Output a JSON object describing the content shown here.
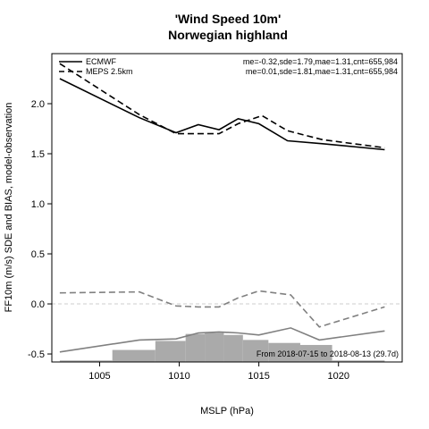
{
  "chart_data": {
    "type": "line",
    "title": "'Wind Speed 10m'",
    "subtitle": "Norwegian highland",
    "xlabel": "MSLP (hPa)",
    "ylabel": "FF10m (m/s) SDE and BIAS, model-observation",
    "xlim": [
      1002,
      1024
    ],
    "ylim": [
      -0.58,
      2.5
    ],
    "x_ticks": [
      1005,
      1010,
      1015,
      1020
    ],
    "y_ticks": [
      -0.5,
      0.0,
      0.5,
      1.0,
      1.5,
      2.0
    ],
    "y_tick_labels": [
      "-0.5",
      "0.0",
      "0.5",
      "1.0",
      "1.5",
      "2.0"
    ],
    "x_tick_labels": [
      "1005",
      "1010",
      "1015",
      "1020"
    ],
    "zero_line": true,
    "legend": {
      "position": "top-left",
      "entries": [
        {
          "label": "ECMWF",
          "style": "solid"
        },
        {
          "label": "MEPS 2.5km",
          "style": "dashed"
        }
      ]
    },
    "stats": [
      "me=-0.32,sde=1.79,mae=1.31,cnt=655,984",
      "me=0.01,sde=1.81,mae=1.31,cnt=655,984"
    ],
    "date_note": "From 2018-07-15 to 2018-08-13 (29.7d)",
    "series": [
      {
        "name": "ECMWF",
        "metric": "SDE",
        "color": "#000000",
        "dash": "solid",
        "x": [
          1002.5,
          1007.5,
          1009.8,
          1011.2,
          1012.5,
          1013.7,
          1015.0,
          1016.8,
          1019.0,
          1022.9
        ],
        "y": [
          2.25,
          1.86,
          1.71,
          1.79,
          1.74,
          1.85,
          1.8,
          1.63,
          1.6,
          1.54
        ]
      },
      {
        "name": "MEPS 2.5km",
        "metric": "SDE",
        "color": "#000000",
        "dash": "dashed",
        "x": [
          1002.5,
          1007.5,
          1009.8,
          1011.2,
          1012.5,
          1013.7,
          1015.2,
          1016.8,
          1019.0,
          1022.9
        ],
        "y": [
          2.4,
          1.89,
          1.7,
          1.7,
          1.7,
          1.8,
          1.88,
          1.73,
          1.64,
          1.56
        ]
      },
      {
        "name": "ECMWF",
        "metric": "BIAS",
        "color": "#808080",
        "dash": "solid",
        "x": [
          1002.5,
          1007.5,
          1009.8,
          1011.2,
          1012.5,
          1013.7,
          1015.0,
          1017.0,
          1018.8,
          1022.9
        ],
        "y": [
          -0.48,
          -0.36,
          -0.35,
          -0.29,
          -0.28,
          -0.29,
          -0.31,
          -0.24,
          -0.36,
          -0.27
        ]
      },
      {
        "name": "MEPS 2.5km",
        "metric": "BIAS",
        "color": "#808080",
        "dash": "dashed",
        "x": [
          1002.5,
          1007.5,
          1009.8,
          1011.2,
          1012.5,
          1013.7,
          1015.0,
          1017.0,
          1018.8,
          1022.9
        ],
        "y": [
          0.11,
          0.12,
          -0.02,
          -0.03,
          -0.03,
          0.06,
          0.13,
          0.09,
          -0.23,
          -0.03
        ]
      }
    ],
    "histogram": {
      "color": "#aaaaaa",
      "baseline": -0.58,
      "bins": [
        {
          "x0": 1002.5,
          "x1": 1005.8,
          "top": -0.565
        },
        {
          "x0": 1005.8,
          "x1": 1008.5,
          "top": -0.46
        },
        {
          "x0": 1008.5,
          "x1": 1010.4,
          "top": -0.37
        },
        {
          "x0": 1010.4,
          "x1": 1011.6,
          "top": -0.3
        },
        {
          "x0": 1011.6,
          "x1": 1012.8,
          "top": -0.29
        },
        {
          "x0": 1012.8,
          "x1": 1014.0,
          "top": -0.31
        },
        {
          "x0": 1014.0,
          "x1": 1015.6,
          "top": -0.36
        },
        {
          "x0": 1015.6,
          "x1": 1017.6,
          "top": -0.39
        },
        {
          "x0": 1017.6,
          "x1": 1019.6,
          "top": -0.41
        },
        {
          "x0": 1019.6,
          "x1": 1022.9,
          "top": -0.565
        }
      ]
    }
  }
}
